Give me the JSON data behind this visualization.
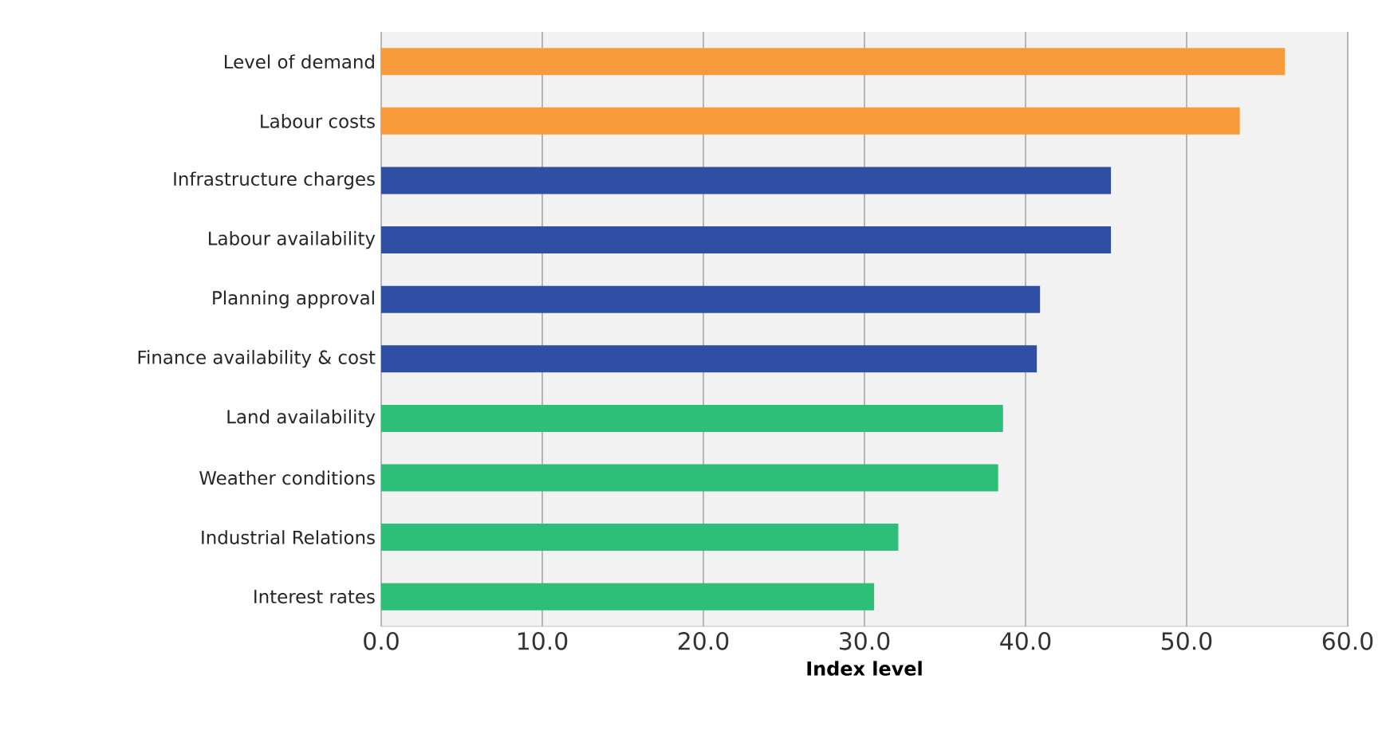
{
  "chart_data": {
    "type": "bar",
    "orientation": "horizontal",
    "xlabel": "Index level",
    "categories": [
      "Level of demand",
      "Labour costs",
      "Infrastructure charges",
      "Labour availability",
      "Planning approval",
      "Finance availability & cost",
      "Land availability",
      "Weather conditions",
      "Industrial Relations",
      "Interest rates"
    ],
    "values": [
      56.1,
      53.3,
      45.3,
      45.3,
      40.9,
      40.7,
      38.6,
      38.3,
      32.1,
      30.6
    ],
    "colors": [
      "#f79a3a",
      "#f79a3a",
      "#2e4fa3",
      "#2e4fa3",
      "#2e4fa3",
      "#2e4fa3",
      "#2dbe78",
      "#2dbe78",
      "#2dbe78",
      "#2dbe78"
    ],
    "xlim": [
      0,
      60
    ],
    "xticks": [
      {
        "value": 0,
        "label": "0.0"
      },
      {
        "value": 10,
        "label": "10.0"
      },
      {
        "value": 20,
        "label": "20.0"
      },
      {
        "value": 30,
        "label": "30.0"
      },
      {
        "value": 40,
        "label": "40.0"
      },
      {
        "value": 50,
        "label": "50.0"
      },
      {
        "value": 60,
        "label": "60.0"
      }
    ],
    "grid": "x"
  }
}
